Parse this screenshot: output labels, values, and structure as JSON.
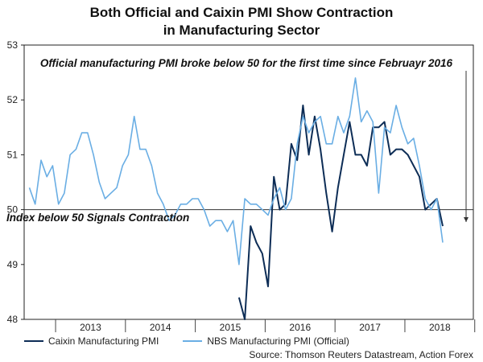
{
  "chart_data": {
    "type": "line",
    "title": "Both Official and Caixin PMI Show Contraction",
    "subtitle": "in Manufacturing Sector",
    "ylim": [
      48,
      53
    ],
    "yticks": [
      48,
      49,
      50,
      51,
      52,
      53
    ],
    "xlim": [
      2012.55,
      2018.98
    ],
    "xtick_labels": [
      "2013",
      "2014",
      "2015",
      "2016",
      "2017",
      "2018"
    ],
    "reference_line": 50,
    "annotations": [
      "Official manufacturing PMI broke below 50 for the first time since Februayr 2016",
      "Index below 50 Signals Contraction"
    ],
    "source": "Source: Thomson Reuters Datastream, Action Forex",
    "legend_position": "bottom-left",
    "series": [
      {
        "name": "Caixin Manufacturing PMI",
        "color": "#0d2d56",
        "start": 2015.625,
        "values": [
          48.4,
          48.0,
          49.7,
          49.4,
          49.2,
          48.6,
          50.6,
          50.0,
          50.1,
          51.2,
          50.9,
          51.9,
          51.0,
          51.7,
          51.1,
          50.3,
          49.6,
          50.4,
          51.0,
          51.6,
          51.0,
          51.0,
          50.8,
          51.5,
          51.5,
          51.6,
          51.0,
          51.1,
          51.1,
          51.0,
          50.8,
          50.6,
          50.0,
          50.1,
          50.2,
          49.7
        ]
      },
      {
        "name": "NBS Manufacturing PMI (Official)",
        "color": "#6aaee4",
        "start": 2012.625,
        "values": [
          50.4,
          50.1,
          50.9,
          50.6,
          50.8,
          50.1,
          50.3,
          51.0,
          51.1,
          51.4,
          51.4,
          51.0,
          50.5,
          50.2,
          50.3,
          50.4,
          50.8,
          51.0,
          51.7,
          51.1,
          51.1,
          50.8,
          50.3,
          50.1,
          49.8,
          49.9,
          50.1,
          50.1,
          50.2,
          50.2,
          50.0,
          49.7,
          49.8,
          49.8,
          49.6,
          49.8,
          49.0,
          50.2,
          50.1,
          50.1,
          50.0,
          49.9,
          50.2,
          50.4,
          50.0,
          50.2,
          51.2,
          51.7,
          51.4,
          51.6,
          51.7,
          51.2,
          51.2,
          51.7,
          51.4,
          51.7,
          52.4,
          51.6,
          51.8,
          51.6,
          50.3,
          51.5,
          51.4,
          51.9,
          51.5,
          51.2,
          51.3,
          50.8,
          50.2,
          50.0,
          50.2,
          49.4
        ]
      }
    ]
  }
}
